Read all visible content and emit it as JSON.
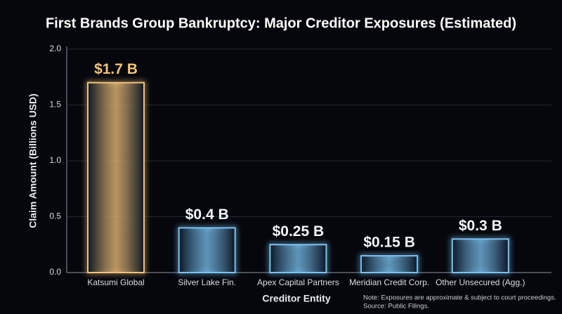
{
  "chart_data": {
    "type": "bar",
    "title": "First Brands Group Bankruptcy: Major Creditor Exposures (Estimated)",
    "x_label": "Creditor Entity",
    "y_label": "Claim Amount (Billions USD)",
    "categories": [
      "Katsumi Global",
      "Silver Lake Fin.",
      "Apex Capital Partners",
      "Meridian Credit Corp.",
      "Other Unsecured (Agg.)"
    ],
    "values": [
      1.7,
      0.4,
      0.25,
      0.15,
      0.3
    ],
    "value_labels": [
      "$1.7 B",
      "$0.4 B",
      "$0.25 B",
      "$0.15 B",
      "$0.3 B"
    ],
    "colors": [
      "#f4c27a",
      "#7cc3f2",
      "#7cc3f2",
      "#7cc3f2",
      "#7cc3f2"
    ],
    "ylim": [
      0,
      2
    ],
    "yticks": [
      {
        "value": 0,
        "label": "0.0"
      },
      0.5,
      {
        "value": 1,
        "label": "1.0"
      },
      1.5,
      {
        "value": 2,
        "label": "2.0"
      }
    ],
    "grid": true,
    "notes": [
      "Note: Exposures are approximate & subject to court proceedings.",
      "Source: Public Filings."
    ]
  }
}
